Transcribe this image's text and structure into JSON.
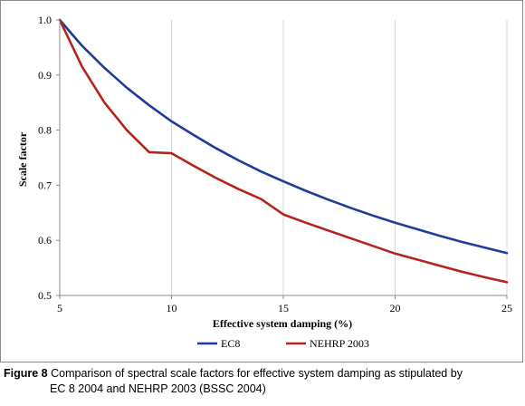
{
  "chart_data": {
    "type": "line",
    "xlabel": "Effective system damping (%)",
    "ylabel": "Scale factor",
    "xlim": [
      5,
      25
    ],
    "ylim": [
      0.5,
      1.0
    ],
    "xticks": [
      "5",
      "10",
      "15",
      "20",
      "25"
    ],
    "yticks": [
      "0.5",
      "0.6",
      "0.7",
      "0.8",
      "0.9",
      "1.0"
    ],
    "grid": "vertical",
    "legend_placement": "bottom-center",
    "x": [
      5,
      6,
      7,
      8,
      9,
      10,
      11,
      12,
      13,
      14,
      15,
      16,
      17,
      18,
      19,
      20,
      21,
      22,
      23,
      24,
      25
    ],
    "series": [
      {
        "name": "EC8",
        "color": "#1f3c99",
        "values": [
          1.0,
          0.953,
          0.913,
          0.877,
          0.845,
          0.816,
          0.791,
          0.767,
          0.745,
          0.725,
          0.707,
          0.69,
          0.674,
          0.659,
          0.645,
          0.632,
          0.62,
          0.608,
          0.597,
          0.587,
          0.577
        ]
      },
      {
        "name": "NEHRP 2003",
        "color": "#b3241b",
        "values": [
          1.0,
          0.915,
          0.85,
          0.8,
          0.76,
          0.758,
          0.735,
          0.713,
          0.693,
          0.675,
          0.647,
          0.632,
          0.618,
          0.604,
          0.59,
          0.576,
          0.565,
          0.554,
          0.543,
          0.533,
          0.524
        ]
      }
    ]
  },
  "caption": {
    "label": "Figure 8",
    "text_line1": " Comparison of spectral scale factors for effective system damping as stipulated by",
    "text_line2": "EC 8 2004 and NEHRP 2003 (BSSC 2004)"
  }
}
